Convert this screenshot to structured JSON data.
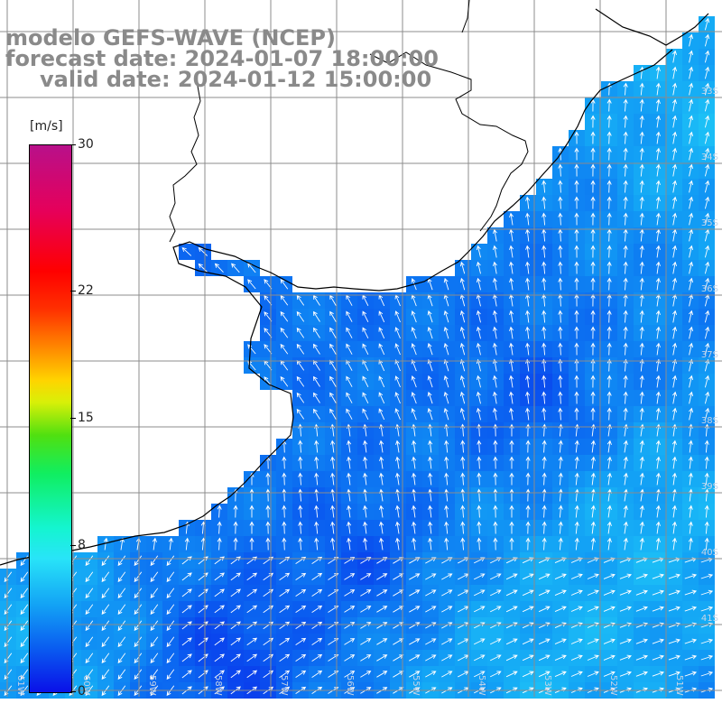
{
  "title": {
    "model": "modelo GEFS-WAVE (NCEP)",
    "forecast": "forecast date: 2024-01-07 18:00:00",
    "valid": "valid date: 2024-01-12 15:00:00"
  },
  "colorbar": {
    "units": "[m/s]",
    "range": [
      0,
      30
    ],
    "ticks": [
      {
        "value": 30,
        "label": "30"
      },
      {
        "value": 22,
        "label": "22"
      },
      {
        "value": 15,
        "label": "15"
      },
      {
        "value": 8,
        "label": "8"
      },
      {
        "value": 0,
        "label": "0"
      }
    ]
  },
  "grid_labels": {
    "longitudes": [
      "61W",
      "60W",
      "59W",
      "58W",
      "57W",
      "56W",
      "55W",
      "54W",
      "53W",
      "52W",
      "51W"
    ],
    "latitudes": [
      "33S",
      "34S",
      "35S",
      "36S",
      "37S",
      "38S",
      "39S",
      "40S",
      "41S"
    ]
  },
  "colors": {
    "land": "#ffffff",
    "coastline": "#000000",
    "grid": "#8c8c8c",
    "arrows": "#ffffff",
    "label_gray": "#8a8a8a"
  }
}
